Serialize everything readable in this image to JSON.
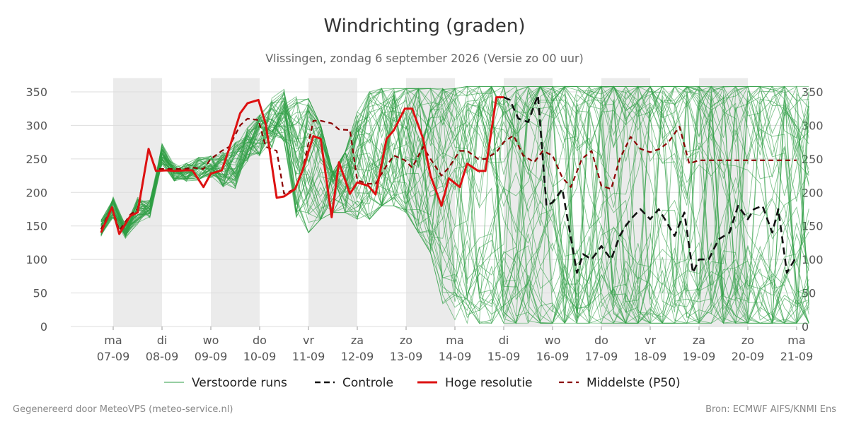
{
  "title": "Windrichting (graden)",
  "subtitle": "Vlissingen, zondag  6 september 2026 (Versie zo 00 uur)",
  "footer_left": "Gegenereerd door MeteoVPS (meteo-service.nl)",
  "footer_right": "Bron: ECMWF AIFS/KNMI Ens",
  "colors": {
    "ensemble": "#2e9e44",
    "control": "#111111",
    "hires": "#dd1111",
    "median": "#8b0000",
    "weekend_band": "#ebebeb",
    "grid": "#dddddd",
    "axis_text": "#555555"
  },
  "chart_data": {
    "type": "line",
    "x_unit": "days since 2026-09-06 00:00",
    "xlim": [
      0.75,
      15.0
    ],
    "ylim": [
      0,
      360
    ],
    "y_ticks": [
      0,
      50,
      100,
      150,
      200,
      250,
      300,
      350
    ],
    "x_tick_positions": [
      1,
      2,
      3,
      4,
      5,
      6,
      7,
      8,
      9,
      10,
      11,
      12,
      13,
      14,
      15
    ],
    "x_tick_days": [
      "ma",
      "di",
      "wo",
      "do",
      "vr",
      "za",
      "zo",
      "ma",
      "di",
      "wo",
      "do",
      "vr",
      "za",
      "zo",
      "ma"
    ],
    "x_tick_dates": [
      "07-09",
      "08-09",
      "09-09",
      "10-09",
      "11-09",
      "12-09",
      "13-09",
      "14-09",
      "15-09",
      "16-09",
      "17-09",
      "18-09",
      "19-09",
      "20-09",
      "21-09"
    ],
    "shaded_bands": [
      [
        1,
        2
      ],
      [
        3,
        4
      ],
      [
        5,
        6
      ],
      [
        7,
        8
      ],
      [
        9,
        10
      ],
      [
        11,
        12
      ],
      [
        13,
        14
      ]
    ],
    "series": [
      {
        "name": "Hoge resolutie",
        "x": [
          0.75,
          0.975,
          1.125,
          1.35,
          1.5,
          1.725,
          1.875,
          2.1,
          2.25,
          2.475,
          2.625,
          2.85,
          3.0,
          3.225,
          3.375,
          3.6,
          3.75,
          3.975,
          4.125,
          4.35,
          4.5,
          4.725,
          4.875,
          5.1,
          5.25,
          5.475,
          5.625,
          5.85,
          6.0,
          6.225,
          6.375,
          6.6,
          6.75,
          6.975,
          7.125,
          7.35,
          7.5,
          7.725,
          7.875,
          8.1,
          8.25,
          8.475,
          8.625,
          8.85,
          9.0
        ],
        "values": [
          140,
          178,
          138,
          165,
          170,
          265,
          232,
          233,
          232,
          233,
          233,
          208,
          228,
          233,
          265,
          318,
          333,
          338,
          302,
          192,
          194,
          205,
          232,
          284,
          280,
          163,
          245,
          198,
          215,
          210,
          197,
          280,
          293,
          325,
          325,
          280,
          225,
          180,
          221,
          208,
          243,
          232,
          232,
          342,
          342
        ]
      },
      {
        "name": "Controle",
        "x": [
          9.0,
          9.125,
          9.3,
          9.5,
          9.7,
          9.875,
          10.0,
          10.2,
          10.5,
          10.625,
          10.8,
          11.0,
          11.2,
          11.375,
          11.5,
          11.6,
          11.8,
          12.0,
          12.175,
          12.3,
          12.5,
          12.7,
          12.875,
          13.0,
          13.2,
          13.4,
          13.625,
          13.8,
          14.0,
          14.125,
          14.3,
          14.5,
          14.625,
          14.8,
          15.0
        ],
        "values": [
          342,
          338,
          310,
          305,
          345,
          180,
          185,
          205,
          80,
          108,
          100,
          120,
          100,
          135,
          150,
          160,
          175,
          160,
          175,
          160,
          135,
          170,
          80,
          100,
          100,
          130,
          140,
          180,
          160,
          175,
          180,
          140,
          175,
          80,
          105
        ]
      },
      {
        "name": "Middelste (P50)",
        "x": [
          0.75,
          0.975,
          1.125,
          1.35,
          1.5,
          1.725,
          1.875,
          2.1,
          2.25,
          2.475,
          2.625,
          2.85,
          3.0,
          3.225,
          3.375,
          3.6,
          3.75,
          3.975,
          4.125,
          4.35,
          4.5,
          4.725,
          4.875,
          5.1,
          5.25,
          5.475,
          5.625,
          5.85,
          6.0,
          6.225,
          6.375,
          6.6,
          6.75,
          6.975,
          7.125,
          7.35,
          7.5,
          7.725,
          7.875,
          8.1,
          8.25,
          8.475,
          8.625,
          8.85,
          9.0,
          9.2,
          9.4,
          9.625,
          9.8,
          10.0,
          10.2,
          10.375,
          10.6,
          10.8,
          11.0,
          11.2,
          11.375,
          11.6,
          11.8,
          12.0,
          12.2,
          12.375,
          12.6,
          12.8,
          13.0,
          13.2,
          13.4,
          13.625,
          13.8,
          14.0,
          14.2,
          14.4,
          14.625,
          14.8,
          15.0
        ],
        "values": [
          145,
          178,
          143,
          167,
          175,
          263,
          235,
          235,
          235,
          235,
          237,
          235,
          250,
          262,
          268,
          300,
          310,
          308,
          268,
          262,
          198,
          205,
          232,
          307,
          307,
          303,
          294,
          293,
          218,
          213,
          213,
          240,
          255,
          248,
          237,
          268,
          250,
          225,
          237,
          262,
          262,
          250,
          250,
          260,
          275,
          285,
          255,
          245,
          262,
          255,
          222,
          208,
          250,
          262,
          210,
          205,
          250,
          283,
          265,
          260,
          265,
          275,
          298,
          243,
          248,
          248,
          248,
          248,
          248,
          248,
          248,
          248,
          248,
          248,
          248
        ]
      }
    ],
    "ensemble": {
      "name": "Verstoorde runs",
      "members": 50,
      "x_start": 0.75,
      "x_step": 0.25,
      "envelope_low": [
        133,
        160,
        130,
        150,
        160,
        240,
        215,
        215,
        215,
        220,
        205,
        200,
        240,
        250,
        260,
        270,
        150,
        140,
        160,
        170,
        170,
        160,
        160,
        180,
        180,
        170,
        140,
        110,
        20,
        10,
        5,
        5,
        5,
        5,
        5,
        5,
        5,
        5,
        5,
        5,
        5,
        5,
        5,
        5,
        5,
        5,
        5,
        5,
        5,
        5,
        5,
        5,
        5,
        5,
        5,
        5,
        5,
        5,
        5
      ],
      "envelope_high": [
        160,
        195,
        155,
        195,
        190,
        275,
        245,
        245,
        255,
        258,
        265,
        280,
        300,
        320,
        345,
        360,
        360,
        340,
        300,
        230,
        260,
        320,
        350,
        355,
        355,
        355,
        355,
        355,
        355,
        355,
        358,
        358,
        358,
        358,
        358,
        358,
        358,
        358,
        358,
        358,
        358,
        358,
        358,
        358,
        358,
        358,
        358,
        358,
        358,
        358,
        358,
        358,
        358,
        358,
        358,
        358,
        358,
        358,
        358
      ]
    }
  },
  "legend": [
    {
      "label": "Verstoorde runs",
      "style": "thin"
    },
    {
      "label": "Controle",
      "style": "dashed-black"
    },
    {
      "label": "Hoge resolutie",
      "style": "solid-red"
    },
    {
      "label": "Middelste (P50)",
      "style": "dashed-darkred"
    }
  ]
}
